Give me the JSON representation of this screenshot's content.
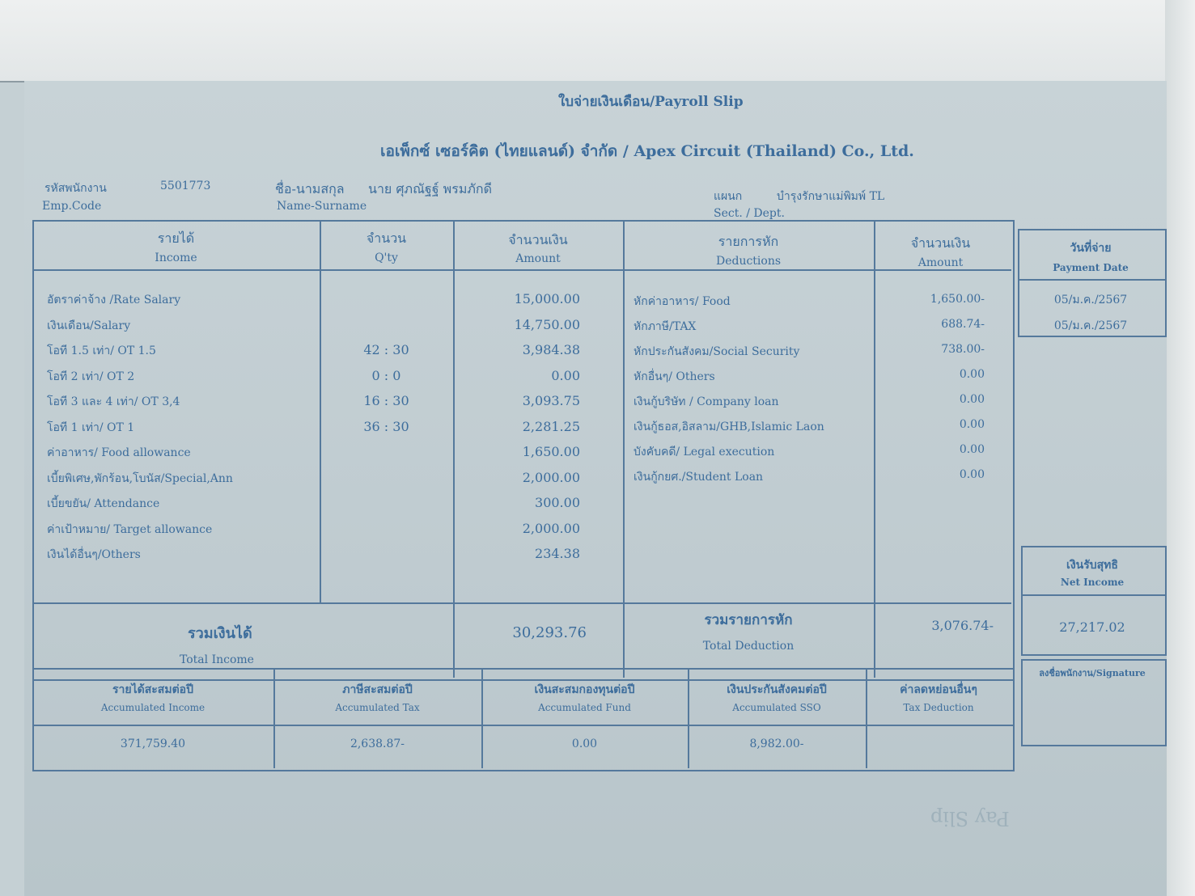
{
  "title": "ใบจ่ายเงินเดือน/Payroll Slip",
  "company": "เอเพ็กซ์ เซอร์คิต (ไทยแลนด์) จำกัด / Apex Circuit (Thailand) Co., Ltd.",
  "employee": {
    "code_label_th": "รหัสพนักงาน",
    "code_label_en": "Emp.Code",
    "code": "5501773",
    "name_label_th": "ชื่อ-นามสกุล",
    "name_label_en": "Name-Surname",
    "name": "นาย ศุภณัฐฐ์ พรมภักดี",
    "dept_label_th": "แผนก",
    "dept_label_en": "Sect. / Dept.",
    "dept": "บำรุงรักษาแม่พิมพ์ TL"
  },
  "headers": {
    "income_th": "รายได้",
    "income_en": "Income",
    "qty_th": "จำนวน",
    "qty_en": "Q'ty",
    "amount_th": "จำนวนเงิน",
    "amount_en": "Amount",
    "deductions_th": "รายการหัก",
    "deductions_en": "Deductions",
    "ded_amount_th": "จำนวนเงิน",
    "ded_amount_en": "Amount",
    "payment_date_th": "วันที่จ่าย",
    "payment_date_en": "Payment Date"
  },
  "income": [
    {
      "label": "อัตราค่าจ้าง /Rate Salary",
      "qty": "",
      "amount": "15,000.00"
    },
    {
      "label": "เงินเดือน/Salary",
      "qty": "",
      "amount": "14,750.00"
    },
    {
      "label": "โอที 1.5 เท่า/ OT 1.5",
      "qty": "42 : 30",
      "amount": "3,984.38"
    },
    {
      "label": "โอที 2 เท่า/ OT 2",
      "qty": "0 : 0",
      "amount": "0.00"
    },
    {
      "label": "โอที 3 และ 4 เท่า/ OT 3,4",
      "qty": "16 : 30",
      "amount": "3,093.75"
    },
    {
      "label": "โอที 1 เท่า/ OT 1",
      "qty": "36 : 30",
      "amount": "2,281.25"
    },
    {
      "label": "ค่าอาหาร/ Food allowance",
      "qty": "",
      "amount": "1,650.00"
    },
    {
      "label": "เบี้ยพิเศษ,พักร้อน,โบนัส/Special,Ann",
      "qty": "",
      "amount": "2,000.00"
    },
    {
      "label": "เบี้ยขยัน/ Attendance",
      "qty": "",
      "amount": "300.00"
    },
    {
      "label": "ค่าเป้าหมาย/ Target allowance",
      "qty": "",
      "amount": "2,000.00"
    },
    {
      "label": "เงินได้อื่นๆ/Others",
      "qty": "",
      "amount": "234.38"
    }
  ],
  "deductions": [
    {
      "label": "หักค่าอาหาร/ Food",
      "amount": "1,650.00-"
    },
    {
      "label": "หักภาษี/TAX",
      "amount": "688.74-"
    },
    {
      "label": "หักประกันสังคม/Social Security",
      "amount": "738.00-"
    },
    {
      "label": "หักอื่นๆ/ Others",
      "amount": "0.00"
    },
    {
      "label": "เงินกู้บริษัท / Company loan",
      "amount": "0.00"
    },
    {
      "label": "เงินกู้ธอส,อิสลาม/GHB,Islamic Laon",
      "amount": "0.00"
    },
    {
      "label": "บังคับคดี/ Legal execution",
      "amount": "0.00"
    },
    {
      "label": "เงินกู้กยศ./Student Loan",
      "amount": "0.00"
    }
  ],
  "payment_dates": [
    "05/ม.ค./2567",
    "05/ม.ค./2567"
  ],
  "totals": {
    "income_th": "รวมเงินได้",
    "income_en": "Total Income",
    "income": "30,293.76",
    "deduction_th": "รวมรายการหัก",
    "deduction_en": "Total Deduction",
    "deduction": "3,076.74-",
    "net_th": "เงินรับสุทธิ",
    "net_en": "Net Income",
    "net": "27,217.02"
  },
  "accumulated": [
    {
      "th": "รายได้สะสมต่อปี",
      "en": "Accumulated Income",
      "value": "371,759.40"
    },
    {
      "th": "ภาษีสะสมต่อปี",
      "en": "Accumulated Tax",
      "value": "2,638.87-"
    },
    {
      "th": "เงินสะสมกองทุนต่อปี",
      "en": "Accumulated Fund",
      "value": "0.00"
    },
    {
      "th": "เงินประกันสังคมต่อปี",
      "en": "Accumulated SSO",
      "value": "8,982.00-"
    },
    {
      "th": "ค่าลดหย่อนอื่นๆ",
      "en": "Tax Deduction",
      "value": ""
    }
  ],
  "signature_label": "ลงชื่อพนักงาน/Signature",
  "footer_faded": "Pay Slip"
}
